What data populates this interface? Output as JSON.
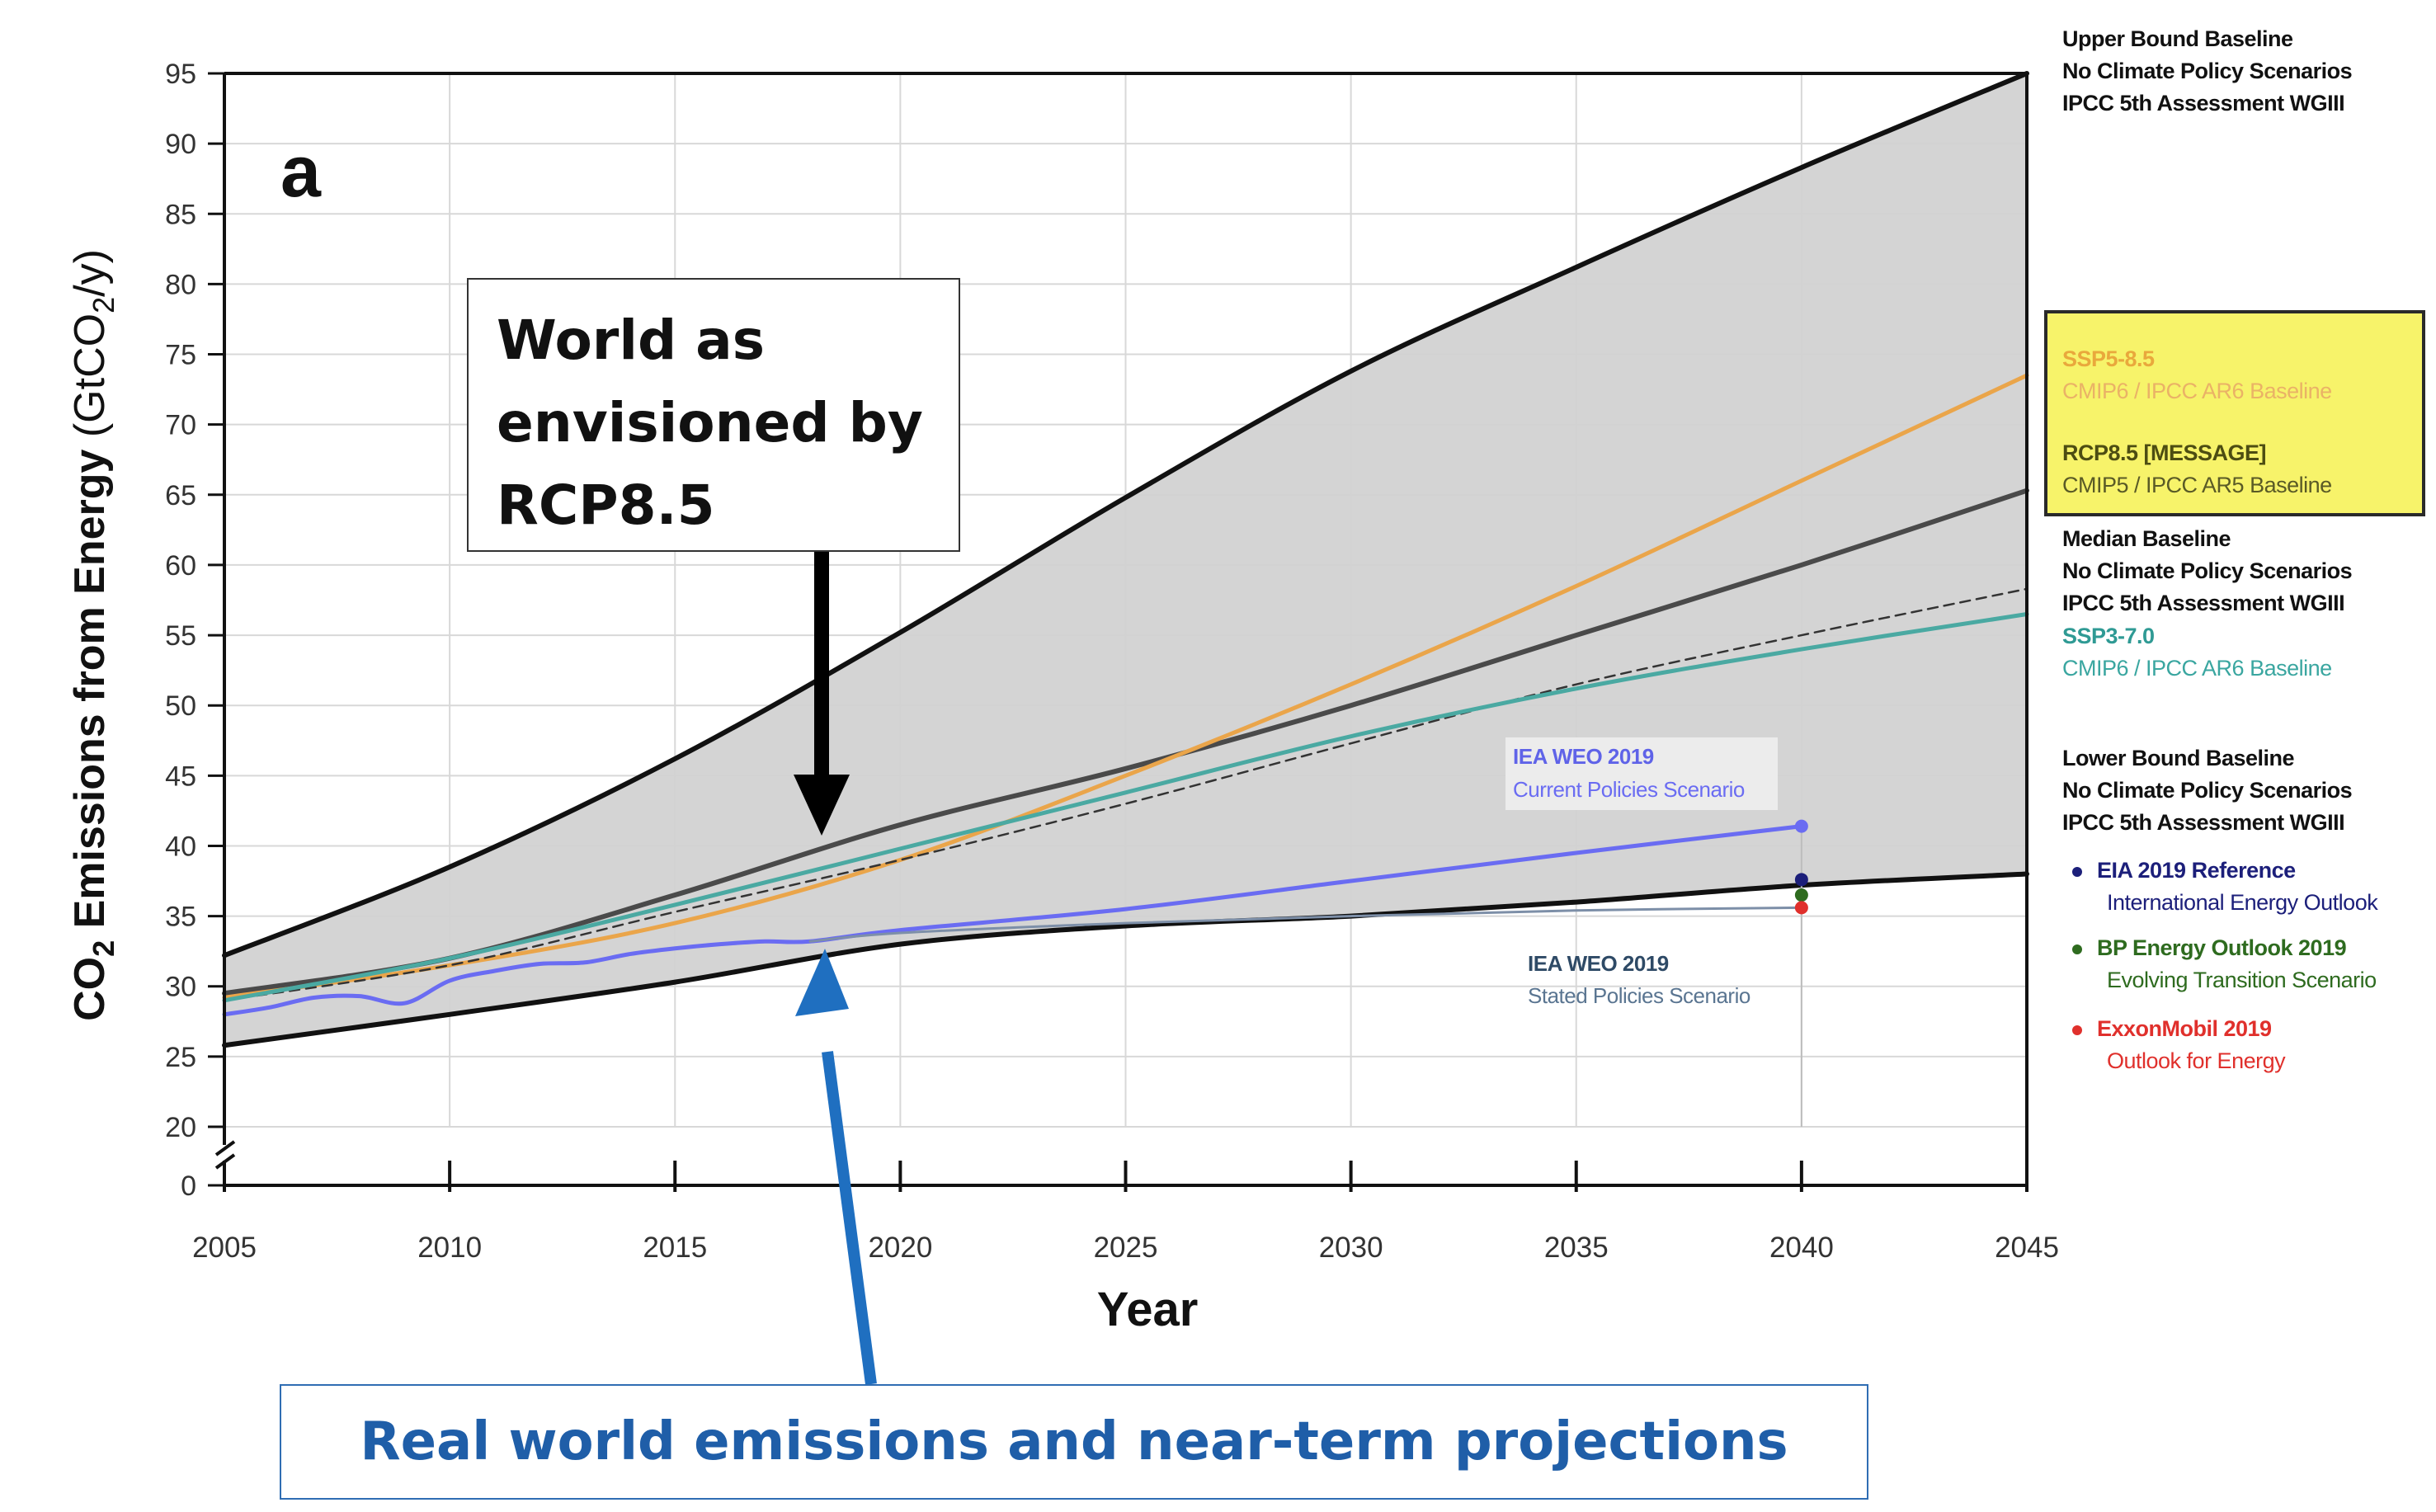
{
  "panel_letter": "a",
  "callouts": {
    "rcp": [
      "World as",
      "envisioned by",
      "RCP8.5"
    ],
    "real": "Real world emissions and near-term projections"
  },
  "inline_labels": {
    "iea_current": [
      "IEA WEO 2019",
      "Current Policies Scenario"
    ],
    "iea_stated": [
      "IEA WEO 2019",
      "Stated Policies Scenario"
    ]
  },
  "legend": {
    "upper": [
      "Upper Bound Baseline",
      "No Climate Policy Scenarios",
      "IPCC 5th Assessment WGIII"
    ],
    "ssp585": {
      "title": "SSP5-8.5",
      "sub": "CMIP6 / IPCC AR6 Baseline",
      "color": "#e9a83c"
    },
    "rcp85": {
      "title": "RCP8.5 [MESSAGE]",
      "sub": "CMIP5 / IPCC AR5 Baseline",
      "color": "#4d4d12"
    },
    "median": [
      "Median Baseline",
      "No Climate Policy Scenarios",
      "IPCC 5th Assessment WGIII"
    ],
    "ssp370": {
      "title": "SSP3-7.0",
      "sub": "CMIP6 / IPCC AR6 Baseline",
      "color": "#3aa6a0"
    },
    "lower": [
      "Lower Bound Baseline",
      "No Climate Policy Scenarios",
      "IPCC 5th Assessment WGIII"
    ],
    "eia": {
      "title": "EIA 2019 Reference",
      "sub": "International Energy Outlook",
      "color": "#1c1f7a"
    },
    "bp": {
      "title": "BP Energy Outlook 2019",
      "sub": "Evolving Transition Scenario",
      "color": "#2e6b1f"
    },
    "exxon": {
      "title": "ExxonMobil 2019",
      "sub": "Outlook for Energy",
      "color": "#e0302c"
    }
  },
  "chart_data": {
    "type": "line",
    "xlabel": "Year",
    "ylabel": {
      "pre": "CO",
      "sub1": "2",
      "mid": " Emissions from Energy",
      "unit_pre": " (GtCO",
      "sub2": "2",
      "unit_post": "/y)"
    },
    "xlim": [
      2005,
      2045
    ],
    "ylim": [
      20,
      95
    ],
    "x_ticks": [
      2005,
      2010,
      2015,
      2020,
      2025,
      2030,
      2035,
      2040,
      2045
    ],
    "y_ticks": [
      20,
      25,
      30,
      35,
      40,
      45,
      50,
      55,
      60,
      65,
      70,
      75,
      80,
      85,
      90,
      95
    ],
    "y_break_tick": 0,
    "colors": {
      "band": "#d2d2d2",
      "bound": "#111111",
      "median": "#4a4a4a",
      "ssp585": "#eaa54a",
      "ssp370": "#4aa9a2",
      "iea_current": "#6a6cf2",
      "iea_stated": "#7d8fa8",
      "grid": "#d8d8d8",
      "callout_arrow_black": "#000000",
      "callout_arrow_blue": "#1f6fc0"
    },
    "series": [
      {
        "name": "Upper Bound Baseline",
        "x": [
          2005,
          2010,
          2015,
          2020,
          2025,
          2030,
          2035,
          2040,
          2045
        ],
        "y": [
          32.2,
          38.5,
          46.2,
          55.2,
          64.8,
          73.8,
          81.2,
          88.3,
          95.0
        ]
      },
      {
        "name": "Lower Bound Baseline",
        "x": [
          2005,
          2010,
          2015,
          2020,
          2025,
          2030,
          2035,
          2040,
          2045
        ],
        "y": [
          25.8,
          28.0,
          30.3,
          33.0,
          34.3,
          35.0,
          36.0,
          37.2,
          38.0
        ]
      },
      {
        "name": "Median Baseline",
        "x": [
          2005,
          2010,
          2015,
          2020,
          2025,
          2030,
          2035,
          2040,
          2045
        ],
        "y": [
          29.5,
          32.0,
          36.5,
          41.5,
          45.5,
          50.0,
          55.0,
          60.0,
          65.3
        ]
      },
      {
        "name": "SSP5-8.5",
        "x": [
          2005,
          2010,
          2015,
          2020,
          2025,
          2030,
          2035,
          2040,
          2045
        ],
        "y": [
          29.2,
          31.5,
          34.5,
          39.0,
          45.0,
          51.5,
          58.5,
          66.0,
          73.5
        ]
      },
      {
        "name": "RCP8.5 [MESSAGE]",
        "x": [
          2005,
          2010,
          2015,
          2020,
          2025,
          2030,
          2035,
          2040,
          2045
        ],
        "y": [
          29.0,
          31.5,
          35.3,
          39.0,
          43.0,
          47.3,
          51.5,
          55.0,
          58.3
        ],
        "dashed": true
      },
      {
        "name": "SSP3-7.0",
        "x": [
          2005,
          2010,
          2015,
          2020,
          2025,
          2030,
          2035,
          2040,
          2045
        ],
        "y": [
          29.0,
          32.0,
          35.8,
          39.8,
          43.8,
          47.8,
          51.2,
          54.0,
          56.5
        ]
      },
      {
        "name": "IEA WEO 2019 Current Policies Scenario",
        "x": [
          2005,
          2006,
          2007,
          2008,
          2009,
          2010,
          2011,
          2012,
          2013,
          2014,
          2015,
          2016,
          2017,
          2018,
          2020,
          2025,
          2030,
          2035,
          2040
        ],
        "y": [
          28.0,
          28.5,
          29.2,
          29.3,
          28.8,
          30.4,
          31.1,
          31.6,
          31.7,
          32.3,
          32.7,
          33.0,
          33.2,
          33.2,
          34.0,
          35.5,
          37.5,
          39.5,
          41.4
        ]
      },
      {
        "name": "IEA WEO 2019 Stated Policies Scenario",
        "x": [
          2018,
          2020,
          2025,
          2030,
          2035,
          2040
        ],
        "y": [
          33.2,
          33.8,
          34.5,
          35.0,
          35.4,
          35.6
        ]
      }
    ],
    "points": [
      {
        "name": "EIA 2019 Reference",
        "x": 2040,
        "y": 37.6,
        "color": "#1c1f7a"
      },
      {
        "name": "BP Energy Outlook 2019",
        "x": 2040,
        "y": 36.5,
        "color": "#2e6b1f"
      },
      {
        "name": "ExxonMobil 2019",
        "x": 2040,
        "y": 35.6,
        "color": "#e0302c"
      },
      {
        "name": "IEA WEO 2019 Current Policies Scenario",
        "x": 2040,
        "y": 41.4,
        "color": "#6a6cf2"
      }
    ]
  }
}
